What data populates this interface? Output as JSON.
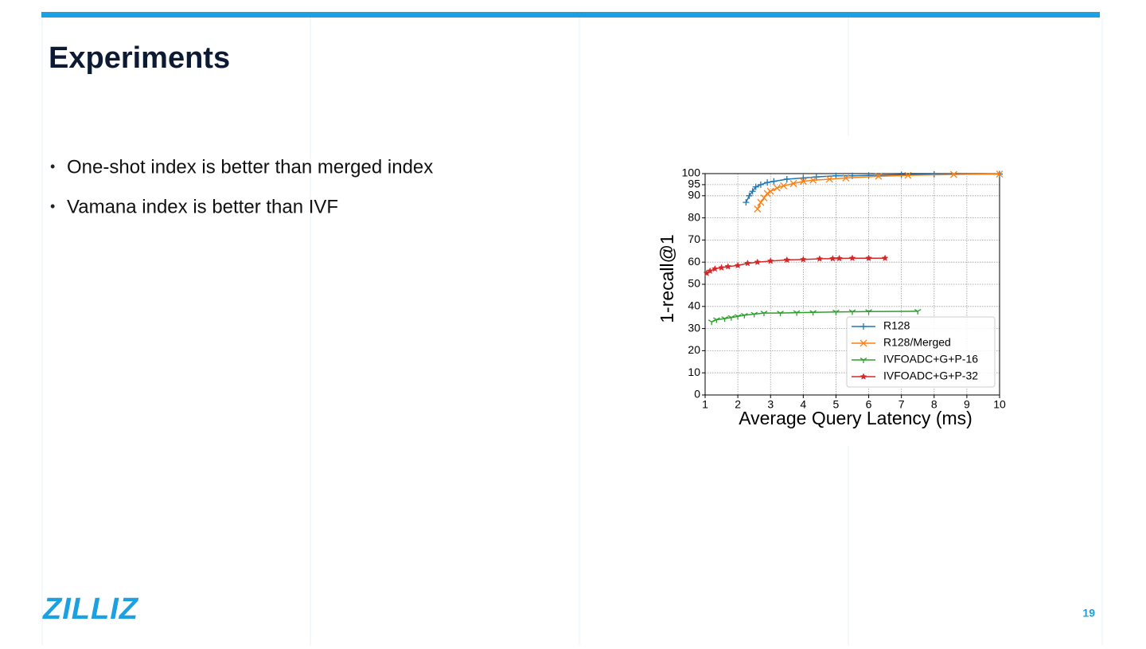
{
  "slide": {
    "title": "Experiments",
    "bullets": [
      "One-shot index is better than merged index",
      "Vamana index is better than IVF"
    ],
    "logo": "ZILLIZ",
    "page_number": 19
  },
  "chart_data": {
    "type": "line",
    "xlabel": "Average Query Latency (ms)",
    "ylabel": "1-recall@1",
    "xlim": [
      1,
      10
    ],
    "xticks": [
      1,
      2,
      3,
      4,
      5,
      6,
      7,
      8,
      9,
      10
    ],
    "ylim": [
      0,
      100
    ],
    "yticks": [
      0,
      10,
      20,
      30,
      40,
      50,
      60,
      70,
      80,
      90,
      95,
      100
    ],
    "grid": true,
    "legend": "lower right",
    "series": [
      {
        "name": "R128",
        "color": "#1f77b4",
        "marker": "plus",
        "x": [
          2.25,
          2.35,
          2.45,
          2.55,
          2.7,
          2.9,
          3.1,
          3.5,
          4,
          4.4,
          5,
          5.5,
          6,
          7,
          8,
          10
        ],
        "values": [
          87,
          90,
          92,
          94,
          95,
          96,
          96.5,
          97.5,
          98,
          98.5,
          99,
          99,
          99.2,
          99.5,
          99.7,
          99.8
        ]
      },
      {
        "name": "R128/Merged",
        "color": "#ff7f0e",
        "marker": "x",
        "x": [
          2.6,
          2.7,
          2.8,
          2.9,
          3.0,
          3.2,
          3.4,
          3.7,
          4,
          4.3,
          4.8,
          5.3,
          6.3,
          7.2,
          8.6,
          10
        ],
        "values": [
          84,
          87,
          89,
          91,
          92,
          93.5,
          94.5,
          95.5,
          96.5,
          97,
          97.5,
          98,
          98.8,
          99.2,
          99.6,
          99.8
        ]
      },
      {
        "name": "IVFOADC+G+P-16",
        "color": "#2ca02c",
        "marker": "tri",
        "x": [
          1.2,
          1.35,
          1.6,
          1.8,
          2.0,
          2.2,
          2.5,
          2.8,
          3.3,
          3.8,
          4.3,
          5,
          5.5,
          6,
          7.5
        ],
        "values": [
          33,
          34,
          34.5,
          35,
          35.5,
          36,
          36.5,
          37,
          37,
          37.2,
          37.3,
          37.5,
          37.6,
          37.7,
          37.8
        ]
      },
      {
        "name": "IVFOADC+G+P-32",
        "color": "#d62728",
        "marker": "star",
        "x": [
          1.05,
          1.15,
          1.3,
          1.5,
          1.7,
          2.0,
          2.3,
          2.6,
          3.0,
          3.5,
          4.0,
          4.5,
          4.9,
          5.1,
          5.5,
          6.0,
          6.5
        ],
        "values": [
          55,
          56,
          57,
          57.5,
          58,
          58.5,
          59.5,
          60,
          60.5,
          61,
          61.2,
          61.5,
          61.6,
          61.7,
          61.8,
          61.8,
          61.8
        ]
      }
    ]
  }
}
